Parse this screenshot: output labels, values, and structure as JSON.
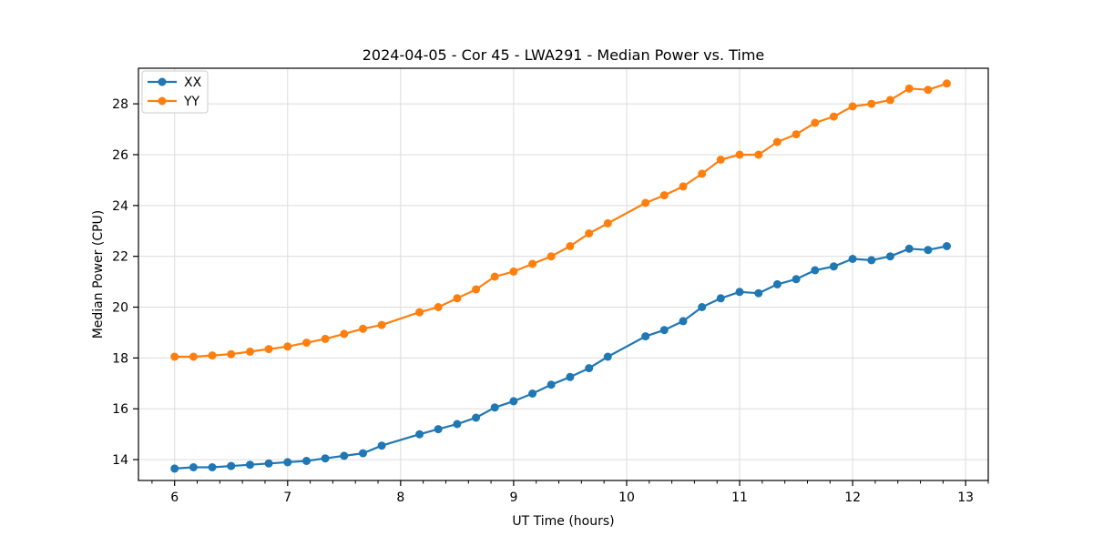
{
  "chart_data": {
    "type": "line",
    "title": "2024-04-05 - Cor 45 - LWA291 - Median Power vs. Time",
    "xlabel": "UT Time (hours)",
    "ylabel": "Median Power (CPU)",
    "xlim": [
      5.68,
      13.2
    ],
    "ylim": [
      13.18,
      29.4
    ],
    "xticks": [
      6,
      7,
      8,
      9,
      10,
      11,
      12,
      13
    ],
    "yticks": [
      14,
      16,
      18,
      20,
      22,
      24,
      26,
      28
    ],
    "minor_xtick_step": 0.2,
    "grid": true,
    "grid_color": "#dcdcdc",
    "legend_position": "upper-left",
    "x": [
      6.0,
      6.167,
      6.333,
      6.5,
      6.667,
      6.833,
      7.0,
      7.167,
      7.333,
      7.5,
      7.667,
      7.833,
      8.167,
      8.333,
      8.5,
      8.667,
      8.833,
      9.0,
      9.167,
      9.333,
      9.5,
      9.667,
      9.833,
      10.167,
      10.333,
      10.5,
      10.667,
      10.833,
      11.0,
      11.167,
      11.333,
      11.5,
      11.667,
      11.833,
      12.0,
      12.167,
      12.333,
      12.5,
      12.667,
      12.833
    ],
    "series": [
      {
        "name": "XX",
        "color": "#1f77b4",
        "values": [
          13.65,
          13.7,
          13.7,
          13.75,
          13.8,
          13.85,
          13.9,
          13.95,
          14.05,
          14.15,
          14.25,
          14.55,
          15.0,
          15.2,
          15.4,
          15.65,
          16.05,
          16.3,
          16.6,
          16.95,
          17.25,
          17.6,
          18.05,
          18.85,
          19.1,
          19.45,
          20.0,
          20.35,
          20.6,
          20.55,
          20.9,
          21.1,
          21.45,
          21.6,
          21.9,
          21.85,
          22.0,
          22.3,
          22.25,
          22.4
        ]
      },
      {
        "name": "YY",
        "color": "#ff7f0e",
        "values": [
          18.05,
          18.05,
          18.1,
          18.15,
          18.25,
          18.35,
          18.45,
          18.6,
          18.75,
          18.95,
          19.15,
          19.3,
          19.8,
          20.0,
          20.35,
          20.7,
          21.2,
          21.4,
          21.7,
          22.0,
          22.4,
          22.9,
          23.3,
          24.1,
          24.4,
          24.75,
          25.25,
          25.8,
          26.0,
          26.0,
          26.5,
          26.8,
          27.25,
          27.5,
          27.9,
          28.0,
          28.15,
          28.6,
          28.55,
          28.8
        ]
      }
    ]
  }
}
